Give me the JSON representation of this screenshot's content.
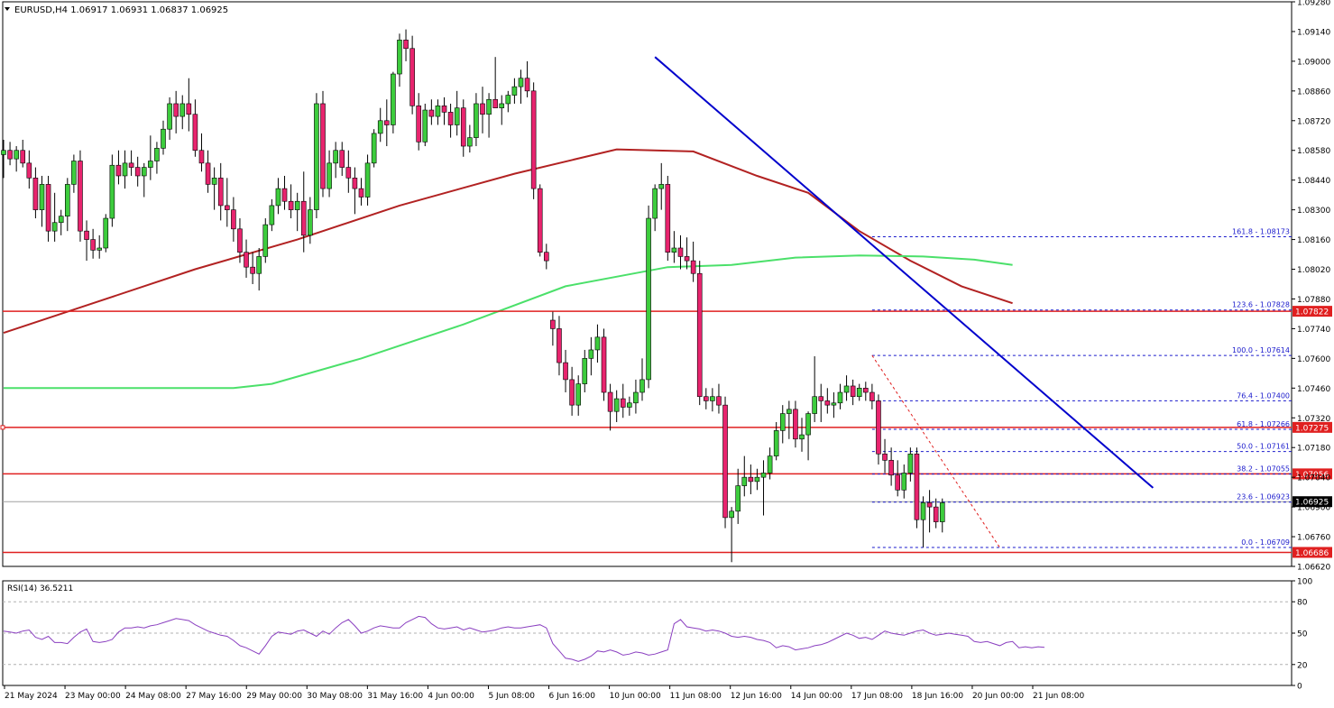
{
  "chart_data": {
    "type": "candlestick",
    "symbol_header": "EURUSD,H4  1.06917 1.06931 1.06837 1.06925",
    "price_ylim": [
      1.0662,
      1.0928
    ],
    "price_ticks": [
      "1.09280",
      "1.09140",
      "1.09000",
      "1.08860",
      "1.08720",
      "1.08580",
      "1.08440",
      "1.08300",
      "1.08160",
      "1.08020",
      "1.07880",
      "1.07740",
      "1.07600",
      "1.07460",
      "1.07320",
      "1.07180",
      "1.07040",
      "1.06900",
      "1.06760",
      "1.06620"
    ],
    "time_ticks": [
      "21 May 2024",
      "23 May 00:00",
      "24 May 08:00",
      "27 May 16:00",
      "29 May 00:00",
      "30 May 08:00",
      "31 May 16:00",
      "4 Jun 00:00",
      "5 Jun 08:00",
      "6 Jun 16:00",
      "10 Jun 00:00",
      "11 Jun 08:00",
      "12 Jun 16:00",
      "14 Jun 00:00",
      "17 Jun 08:00",
      "18 Jun 16:00",
      "20 Jun 00:00",
      "21 Jun 08:00"
    ],
    "candles": [
      [
        1.0856,
        1.0863,
        1.0845,
        1.0858
      ],
      [
        1.0858,
        1.0862,
        1.0851,
        1.0854
      ],
      [
        1.0854,
        1.086,
        1.0848,
        1.0858
      ],
      [
        1.0858,
        1.0863,
        1.085,
        1.0852
      ],
      [
        1.0852,
        1.0858,
        1.084,
        1.0845
      ],
      [
        1.0845,
        1.085,
        1.0826,
        1.083
      ],
      [
        1.083,
        1.0846,
        1.0822,
        1.0842
      ],
      [
        1.0842,
        1.0846,
        1.0815,
        1.082
      ],
      [
        1.082,
        1.0838,
        1.0815,
        1.0824
      ],
      [
        1.0824,
        1.083,
        1.0818,
        1.0827
      ],
      [
        1.0827,
        1.0845,
        1.082,
        1.0842
      ],
      [
        1.0842,
        1.0856,
        1.0838,
        1.0853
      ],
      [
        1.0853,
        1.0858,
        1.0815,
        1.082
      ],
      [
        1.082,
        1.0825,
        1.0806,
        1.0816
      ],
      [
        1.0816,
        1.0821,
        1.0807,
        1.0811
      ],
      [
        1.0811,
        1.0818,
        1.0807,
        1.0812
      ],
      [
        1.0812,
        1.0828,
        1.081,
        1.0826
      ],
      [
        1.0826,
        1.0856,
        1.0822,
        1.0851
      ],
      [
        1.0851,
        1.0858,
        1.0842,
        1.0846
      ],
      [
        1.0846,
        1.0858,
        1.084,
        1.0852
      ],
      [
        1.0852,
        1.0858,
        1.0846,
        1.085
      ],
      [
        1.085,
        1.0855,
        1.0841,
        1.0846
      ],
      [
        1.0846,
        1.0852,
        1.0836,
        1.085
      ],
      [
        1.085,
        1.0865,
        1.0844,
        1.0853
      ],
      [
        1.0853,
        1.0862,
        1.0847,
        1.0859
      ],
      [
        1.0859,
        1.0872,
        1.0856,
        1.0868
      ],
      [
        1.0868,
        1.0883,
        1.0863,
        1.088
      ],
      [
        1.088,
        1.0886,
        1.0866,
        1.0874
      ],
      [
        1.0874,
        1.0884,
        1.0868,
        1.088
      ],
      [
        1.088,
        1.0892,
        1.0867,
        1.0875
      ],
      [
        1.0875,
        1.0882,
        1.0855,
        1.0858
      ],
      [
        1.0858,
        1.0866,
        1.0848,
        1.0852
      ],
      [
        1.0852,
        1.0858,
        1.0838,
        1.0842
      ],
      [
        1.0842,
        1.085,
        1.083,
        1.0845
      ],
      [
        1.0845,
        1.0852,
        1.0825,
        1.0832
      ],
      [
        1.0832,
        1.0845,
        1.0822,
        1.083
      ],
      [
        1.083,
        1.0836,
        1.0815,
        1.0821
      ],
      [
        1.0821,
        1.0826,
        1.0805,
        1.081
      ],
      [
        1.081,
        1.0816,
        1.0798,
        1.0803
      ],
      [
        1.0803,
        1.081,
        1.0795,
        1.08
      ],
      [
        1.08,
        1.0812,
        1.0792,
        1.0808
      ],
      [
        1.0808,
        1.0826,
        1.0805,
        1.0823
      ],
      [
        1.0823,
        1.0835,
        1.082,
        1.0832
      ],
      [
        1.0832,
        1.0845,
        1.0828,
        1.084
      ],
      [
        1.084,
        1.0846,
        1.083,
        1.0834
      ],
      [
        1.0834,
        1.0842,
        1.0826,
        1.083
      ],
      [
        1.083,
        1.0838,
        1.082,
        1.0834
      ],
      [
        1.0834,
        1.0848,
        1.081,
        1.0818
      ],
      [
        1.0818,
        1.0836,
        1.0814,
        1.083
      ],
      [
        1.083,
        1.0885,
        1.0826,
        1.088
      ],
      [
        1.088,
        1.0886,
        1.0836,
        1.084
      ],
      [
        1.084,
        1.0858,
        1.0836,
        1.0852
      ],
      [
        1.0852,
        1.0862,
        1.0845,
        1.0858
      ],
      [
        1.0858,
        1.0862,
        1.0846,
        1.085
      ],
      [
        1.085,
        1.0858,
        1.0838,
        1.0845
      ],
      [
        1.0845,
        1.085,
        1.0828,
        1.084
      ],
      [
        1.084,
        1.0845,
        1.0832,
        1.0836
      ],
      [
        1.0836,
        1.0856,
        1.0832,
        1.0852
      ],
      [
        1.0852,
        1.0868,
        1.085,
        1.0866
      ],
      [
        1.0866,
        1.0878,
        1.0862,
        1.0872
      ],
      [
        1.0872,
        1.0882,
        1.086,
        1.087
      ],
      [
        1.087,
        1.0895,
        1.0866,
        1.0894
      ],
      [
        1.0894,
        1.0913,
        1.0888,
        1.091
      ],
      [
        1.091,
        1.0915,
        1.09,
        1.0906
      ],
      [
        1.0906,
        1.0912,
        1.0875,
        1.0879
      ],
      [
        1.0879,
        1.0885,
        1.0858,
        1.0862
      ],
      [
        1.0862,
        1.088,
        1.086,
        1.0877
      ],
      [
        1.0877,
        1.0882,
        1.087,
        1.0874
      ],
      [
        1.0874,
        1.0882,
        1.087,
        1.0879
      ],
      [
        1.0879,
        1.0883,
        1.087,
        1.0876
      ],
      [
        1.0876,
        1.088,
        1.0864,
        1.087
      ],
      [
        1.087,
        1.0886,
        1.0865,
        1.0878
      ],
      [
        1.0878,
        1.0882,
        1.0855,
        1.086
      ],
      [
        1.086,
        1.087,
        1.0857,
        1.0864
      ],
      [
        1.0864,
        1.0885,
        1.086,
        1.088
      ],
      [
        1.088,
        1.0888,
        1.0866,
        1.0875
      ],
      [
        1.0875,
        1.0885,
        1.0864,
        1.0882
      ],
      [
        1.0882,
        1.0902,
        1.0878,
        1.0878
      ],
      [
        1.0878,
        1.0884,
        1.087,
        1.088
      ],
      [
        1.088,
        1.0886,
        1.0876,
        1.0884
      ],
      [
        1.0884,
        1.0892,
        1.088,
        1.0888
      ],
      [
        1.0888,
        1.0896,
        1.088,
        1.0892
      ],
      [
        1.0892,
        1.09,
        1.0883,
        1.0886
      ],
      [
        1.0886,
        1.089,
        1.0835,
        1.084
      ],
      [
        1.084,
        1.0842,
        1.0808,
        1.081
      ],
      [
        1.081,
        1.0814,
        1.0802,
        1.0806
      ],
      [
        1.0778,
        1.0782,
        1.0766,
        1.0774
      ],
      [
        1.0774,
        1.078,
        1.0752,
        1.0758
      ],
      [
        1.0758,
        1.0764,
        1.0744,
        1.075
      ],
      [
        1.075,
        1.0756,
        1.0733,
        1.0738
      ],
      [
        1.0738,
        1.0752,
        1.0733,
        1.0748
      ],
      [
        1.0748,
        1.0764,
        1.0744,
        1.076
      ],
      [
        1.076,
        1.077,
        1.0752,
        1.0764
      ],
      [
        1.0764,
        1.0776,
        1.0758,
        1.077
      ],
      [
        1.077,
        1.0774,
        1.074,
        1.0744
      ],
      [
        1.0744,
        1.0748,
        1.0726,
        1.0735
      ],
      [
        1.0735,
        1.0745,
        1.073,
        1.0741
      ],
      [
        1.0741,
        1.0748,
        1.0732,
        1.0737
      ],
      [
        1.0737,
        1.0742,
        1.0733,
        1.0739
      ],
      [
        1.0739,
        1.075,
        1.0734,
        1.0744
      ],
      [
        1.0744,
        1.076,
        1.074,
        1.075
      ],
      [
        1.075,
        1.0832,
        1.0746,
        1.0826
      ],
      [
        1.0826,
        1.0842,
        1.082,
        1.084
      ],
      [
        1.084,
        1.0852,
        1.083,
        1.0842
      ],
      [
        1.0842,
        1.0846,
        1.0806,
        1.081
      ],
      [
        1.081,
        1.082,
        1.0805,
        1.0812
      ],
      [
        1.0812,
        1.0818,
        1.0802,
        1.0808
      ],
      [
        1.0808,
        1.0817,
        1.0802,
        1.0806
      ],
      [
        1.0806,
        1.0815,
        1.0796,
        1.08
      ],
      [
        1.08,
        1.0806,
        1.0738,
        1.0742
      ],
      [
        1.0742,
        1.0746,
        1.0736,
        1.074
      ],
      [
        1.074,
        1.0746,
        1.0735,
        1.0742
      ],
      [
        1.0742,
        1.0748,
        1.0734,
        1.0738
      ],
      [
        1.0738,
        1.0742,
        1.068,
        1.0685
      ],
      [
        1.0685,
        1.069,
        1.0664,
        1.0688
      ],
      [
        1.0688,
        1.0708,
        1.0682,
        1.07
      ],
      [
        1.07,
        1.0714,
        1.0695,
        1.0704
      ],
      [
        1.0704,
        1.071,
        1.0696,
        1.0702
      ],
      [
        1.0702,
        1.0708,
        1.0698,
        1.0704
      ],
      [
        1.0704,
        1.0712,
        1.0686,
        1.0706
      ],
      [
        1.0706,
        1.0718,
        1.0703,
        1.0714
      ],
      [
        1.0714,
        1.073,
        1.0712,
        1.0726
      ],
      [
        1.0726,
        1.0738,
        1.072,
        1.0734
      ],
      [
        1.0734,
        1.074,
        1.0722,
        1.0736
      ],
      [
        1.0736,
        1.074,
        1.0718,
        1.0722
      ],
      [
        1.0722,
        1.0732,
        1.0716,
        1.0724
      ],
      [
        1.0724,
        1.0735,
        1.0712,
        1.0734
      ],
      [
        1.0734,
        1.0761,
        1.073,
        1.0742
      ],
      [
        1.0742,
        1.0748,
        1.073,
        1.074
      ],
      [
        1.074,
        1.0746,
        1.0734,
        1.0738
      ],
      [
        1.0738,
        1.0744,
        1.0732,
        1.0739
      ],
      [
        1.0739,
        1.0748,
        1.0736,
        1.0744
      ],
      [
        1.0744,
        1.0752,
        1.074,
        1.0747
      ],
      [
        1.0747,
        1.075,
        1.0738,
        1.0742
      ],
      [
        1.0742,
        1.0748,
        1.074,
        1.0746
      ],
      [
        1.0746,
        1.0749,
        1.074,
        1.0744
      ],
      [
        1.0744,
        1.0748,
        1.0736,
        1.074
      ],
      [
        1.074,
        1.0743,
        1.071,
        1.0715
      ],
      [
        1.0715,
        1.0722,
        1.0706,
        1.0712
      ],
      [
        1.0712,
        1.0718,
        1.07,
        1.0705
      ],
      [
        1.0705,
        1.0712,
        1.0695,
        1.0698
      ],
      [
        1.0698,
        1.071,
        1.0694,
        1.0706
      ],
      [
        1.0706,
        1.0718,
        1.0702,
        1.0715
      ],
      [
        1.0715,
        1.0718,
        1.068,
        1.0684
      ],
      [
        1.0684,
        1.0695,
        1.0671,
        1.0692
      ],
      [
        1.0692,
        1.0698,
        1.0678,
        1.069
      ],
      [
        1.069,
        1.0694,
        1.068,
        1.0683
      ],
      [
        1.0683,
        1.0694,
        1.0678,
        1.0692
      ]
    ],
    "moving_averages": [
      {
        "name": "MA red",
        "color": "#b22222",
        "points": [
          [
            0,
            1.0772
          ],
          [
            14,
            1.0786
          ],
          [
            30,
            1.0802
          ],
          [
            46,
            1.0816
          ],
          [
            62,
            1.0832
          ],
          [
            80,
            1.0847
          ],
          [
            96,
            1.08585
          ],
          [
            108,
            1.08575
          ],
          [
            118,
            1.0846
          ],
          [
            126,
            1.0838
          ],
          [
            134,
            1.082
          ],
          [
            142,
            1.0806
          ],
          [
            150,
            1.0794
          ],
          [
            158,
            1.0786
          ]
        ]
      },
      {
        "name": "MA green",
        "color": "#4be06a",
        "points": [
          [
            0,
            1.0746
          ],
          [
            36,
            1.0746
          ],
          [
            42,
            1.0748
          ],
          [
            56,
            1.076
          ],
          [
            72,
            1.0776
          ],
          [
            88,
            1.0794
          ],
          [
            104,
            1.0803
          ],
          [
            114,
            1.0804
          ],
          [
            124,
            1.08075
          ],
          [
            134,
            1.08085
          ],
          [
            144,
            1.0808
          ],
          [
            152,
            1.08065
          ],
          [
            158,
            1.0804
          ]
        ]
      }
    ],
    "trendline": {
      "color": "#0000cc",
      "from": [
        102,
        1.0902
      ],
      "to": [
        180,
        1.0699
      ]
    },
    "fib_anchor_line": {
      "color": "#e02020",
      "from": [
        136,
        1.07614
      ],
      "to": [
        156,
        1.06709
      ]
    },
    "horizontal_levels": [
      {
        "price": 1.07822,
        "label": "1.07822",
        "color": "#e02020"
      },
      {
        "price": 1.07275,
        "label": "1.07275",
        "color": "#e02020"
      },
      {
        "price": 1.07056,
        "label": "1.07056",
        "color": "#e02020"
      },
      {
        "price": 1.06686,
        "label": "1.06686",
        "color": "#e02020"
      }
    ],
    "current_price": {
      "price": 1.06925,
      "label": "1.06925"
    },
    "fib_levels": [
      {
        "price": 1.08173,
        "label": "161.8 - 1.08173"
      },
      {
        "price": 1.07828,
        "label": "123.6 - 1.07828"
      },
      {
        "price": 1.07614,
        "label": "100.0 - 1.07614"
      },
      {
        "price": 1.074,
        "label": "76.4 - 1.07400"
      },
      {
        "price": 1.07266,
        "label": "61.8 - 1.07266"
      },
      {
        "price": 1.07161,
        "label": "50.0 - 1.07161"
      },
      {
        "price": 1.07055,
        "label": "38.2 - 1.07055"
      },
      {
        "price": 1.06923,
        "label": "23.6 - 1.06923"
      },
      {
        "price": 1.06709,
        "label": "0.0 - 1.06709"
      }
    ],
    "fib_color": "#1a1acc",
    "rsi": {
      "label": "RSI(14) 36.5211",
      "ylim": [
        0,
        100
      ],
      "ticks": [
        "100",
        "80",
        "50",
        "20",
        "0"
      ],
      "guide_levels": [
        80,
        50,
        20
      ],
      "color": "#8a3fc0",
      "values": [
        52,
        51,
        50,
        52,
        53,
        46,
        44,
        47,
        41,
        41,
        40,
        46,
        51,
        54,
        42,
        41,
        42,
        44,
        51,
        55,
        55,
        56,
        55,
        57,
        58,
        60,
        62,
        64,
        63,
        62,
        58,
        55,
        52,
        50,
        48,
        47,
        43,
        38,
        36,
        33,
        30,
        38,
        47,
        51,
        50,
        49,
        52,
        53,
        50,
        47,
        52,
        49,
        55,
        60,
        63,
        57,
        50,
        52,
        55,
        57,
        56,
        55,
        55,
        60,
        63,
        66,
        65,
        59,
        55,
        54,
        55,
        56,
        53,
        55,
        53,
        51,
        52,
        53,
        55,
        56,
        55,
        55,
        56,
        57,
        58,
        55,
        40,
        33,
        26,
        25,
        23,
        25,
        28,
        33,
        32,
        34,
        32,
        29,
        30,
        32,
        31,
        29,
        30,
        32,
        34,
        59,
        63,
        56,
        55,
        54,
        52,
        53,
        52,
        50,
        47,
        46,
        47,
        46,
        44,
        43,
        41,
        36,
        38,
        37,
        34,
        35,
        36,
        38,
        39,
        41,
        44,
        47,
        50,
        48,
        45,
        46,
        44,
        48,
        52,
        50,
        49,
        48,
        50,
        52,
        53,
        50,
        48,
        49,
        50,
        49,
        48,
        47,
        42,
        41,
        42,
        40,
        38,
        41,
        42,
        36,
        37,
        36,
        37,
        36.5
      ]
    }
  }
}
